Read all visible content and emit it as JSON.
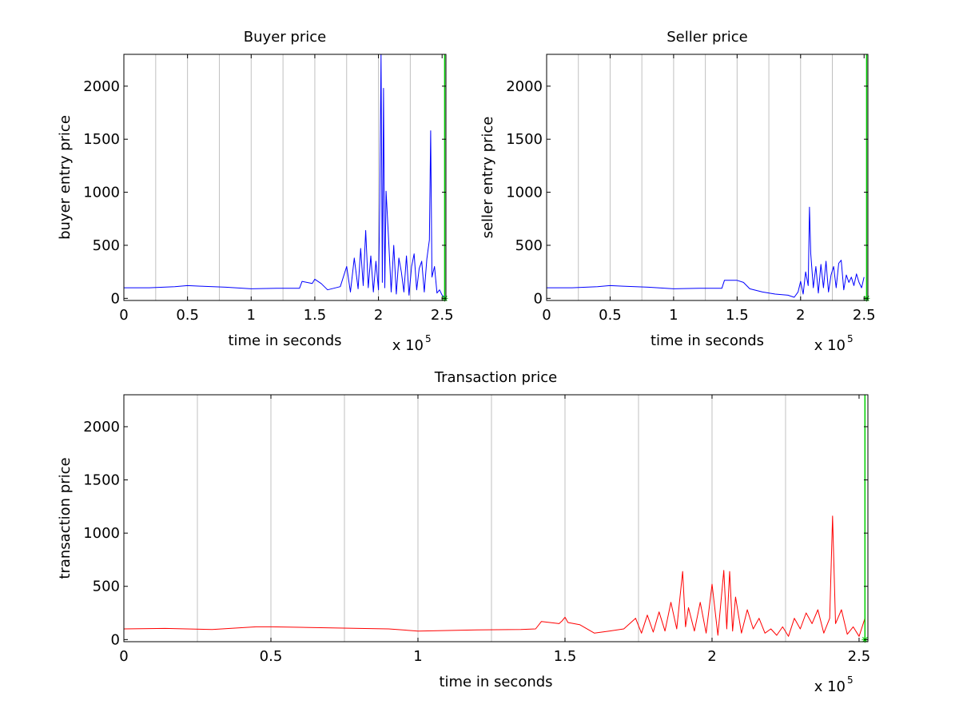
{
  "figure": {
    "background": "#ffffff"
  },
  "chart_data": [
    {
      "type": "line",
      "title": "Buyer price",
      "xlabel": "time in seconds",
      "ylabel": "buyer entry price",
      "x_multiplier_label": "x 10",
      "x_multiplier_exponent": "5",
      "xlim": [
        0,
        2.53
      ],
      "ylim": [
        -20,
        2300
      ],
      "xticks": [
        0,
        0.5,
        1,
        1.5,
        2,
        2.5
      ],
      "xtick_labels": [
        "0",
        "0.5",
        "1",
        "1.5",
        "2",
        "2.5"
      ],
      "yticks": [
        0,
        500,
        1000,
        1500,
        2000
      ],
      "ytick_labels": [
        "0",
        "500",
        "1000",
        "1500",
        "2000"
      ],
      "vgrid": [
        0.25,
        0.5,
        0.75,
        1.0,
        1.25,
        1.5,
        1.75,
        2.0,
        2.25
      ],
      "series": [
        {
          "color": "#0000ff",
          "x": [
            0,
            0.2,
            0.4,
            0.5,
            0.6,
            0.8,
            1.0,
            1.2,
            1.38,
            1.4,
            1.48,
            1.5,
            1.55,
            1.6,
            1.7,
            1.75,
            1.78,
            1.81,
            1.84,
            1.86,
            1.88,
            1.9,
            1.92,
            1.94,
            1.96,
            1.98,
            2.0,
            2.01,
            2.02,
            2.03,
            2.04,
            2.05,
            2.06,
            2.08,
            2.1,
            2.12,
            2.14,
            2.16,
            2.18,
            2.2,
            2.22,
            2.24,
            2.26,
            2.28,
            2.3,
            2.32,
            2.34,
            2.36,
            2.38,
            2.4,
            2.41,
            2.42,
            2.44,
            2.46,
            2.48,
            2.5,
            2.52
          ],
          "y": [
            100,
            100,
            110,
            120,
            115,
            105,
            90,
            95,
            95,
            160,
            140,
            180,
            140,
            80,
            110,
            300,
            60,
            380,
            90,
            470,
            120,
            640,
            100,
            400,
            60,
            350,
            80,
            900,
            2300,
            150,
            1980,
            100,
            1010,
            550,
            60,
            500,
            40,
            380,
            250,
            60,
            400,
            30,
            300,
            420,
            80,
            280,
            350,
            60,
            370,
            550,
            1580,
            200,
            300,
            50,
            80,
            30,
            10
          ]
        }
      ],
      "end_marker": {
        "x": 2.52,
        "y": 0,
        "color": "#00cc00"
      }
    },
    {
      "type": "line",
      "title": "Seller price",
      "xlabel": "time in seconds",
      "ylabel": "seller entry price",
      "x_multiplier_label": "x 10",
      "x_multiplier_exponent": "5",
      "xlim": [
        0,
        2.53
      ],
      "ylim": [
        -20,
        2300
      ],
      "xticks": [
        0,
        0.5,
        1,
        1.5,
        2,
        2.5
      ],
      "xtick_labels": [
        "0",
        "0.5",
        "1",
        "1.5",
        "2",
        "2.5"
      ],
      "yticks": [
        0,
        500,
        1000,
        1500,
        2000
      ],
      "ytick_labels": [
        "0",
        "500",
        "1000",
        "1500",
        "2000"
      ],
      "vgrid": [
        0.25,
        0.5,
        0.75,
        1.0,
        1.25,
        1.5,
        1.75,
        2.0,
        2.25
      ],
      "series": [
        {
          "color": "#0000ff",
          "x": [
            0,
            0.2,
            0.4,
            0.5,
            0.6,
            0.8,
            1.0,
            1.2,
            1.38,
            1.4,
            1.5,
            1.55,
            1.6,
            1.7,
            1.8,
            1.9,
            1.95,
            1.98,
            2.0,
            2.02,
            2.04,
            2.06,
            2.07,
            2.08,
            2.1,
            2.12,
            2.14,
            2.16,
            2.18,
            2.2,
            2.22,
            2.24,
            2.26,
            2.28,
            2.3,
            2.32,
            2.34,
            2.36,
            2.38,
            2.4,
            2.42,
            2.44,
            2.46,
            2.48,
            2.5
          ],
          "y": [
            100,
            100,
            110,
            120,
            115,
            105,
            90,
            95,
            95,
            170,
            170,
            150,
            90,
            60,
            40,
            30,
            10,
            60,
            160,
            40,
            250,
            120,
            860,
            420,
            100,
            300,
            50,
            320,
            100,
            350,
            60,
            220,
            300,
            100,
            330,
            360,
            80,
            220,
            150,
            200,
            120,
            230,
            150,
            100,
            200
          ]
        }
      ],
      "end_marker": {
        "x": 2.52,
        "y": 0,
        "color": "#00cc00"
      }
    },
    {
      "type": "line",
      "title": "Transaction price",
      "xlabel": "time in seconds",
      "ylabel": "transaction price",
      "x_multiplier_label": "x 10",
      "x_multiplier_exponent": "5",
      "xlim": [
        0,
        2.53
      ],
      "ylim": [
        -20,
        2300
      ],
      "xticks": [
        0,
        0.5,
        1,
        1.5,
        2,
        2.5
      ],
      "xtick_labels": [
        "0",
        "0.5",
        "1",
        "1.5",
        "2",
        "2.5"
      ],
      "yticks": [
        0,
        500,
        1000,
        1500,
        2000
      ],
      "ytick_labels": [
        "0",
        "500",
        "1000",
        "1500",
        "2000"
      ],
      "vgrid": [
        0.25,
        0.5,
        0.75,
        1.0,
        1.25,
        1.5,
        1.75,
        2.0,
        2.25
      ],
      "series": [
        {
          "color": "#ff0000",
          "x": [
            0,
            0.14,
            0.3,
            0.45,
            0.5,
            0.6,
            0.8,
            0.9,
            1.0,
            1.2,
            1.35,
            1.4,
            1.42,
            1.48,
            1.49,
            1.5,
            1.51,
            1.55,
            1.6,
            1.65,
            1.7,
            1.74,
            1.76,
            1.78,
            1.8,
            1.82,
            1.84,
            1.86,
            1.88,
            1.9,
            1.91,
            1.92,
            1.94,
            1.96,
            1.98,
            2.0,
            2.02,
            2.04,
            2.05,
            2.06,
            2.07,
            2.08,
            2.1,
            2.12,
            2.14,
            2.16,
            2.18,
            2.2,
            2.22,
            2.24,
            2.26,
            2.28,
            2.3,
            2.32,
            2.34,
            2.36,
            2.38,
            2.4,
            2.41,
            2.42,
            2.44,
            2.46,
            2.48,
            2.5,
            2.52
          ],
          "y": [
            100,
            105,
            95,
            120,
            120,
            115,
            105,
            100,
            80,
            90,
            95,
            100,
            170,
            150,
            175,
            210,
            160,
            140,
            60,
            80,
            100,
            200,
            60,
            230,
            70,
            260,
            80,
            350,
            100,
            640,
            120,
            300,
            80,
            350,
            60,
            520,
            40,
            650,
            100,
            640,
            80,
            400,
            60,
            280,
            100,
            200,
            60,
            100,
            40,
            120,
            30,
            200,
            100,
            250,
            150,
            280,
            60,
            200,
            1160,
            150,
            280,
            50,
            120,
            30,
            200
          ]
        }
      ],
      "end_marker": {
        "x": 2.52,
        "y": 0,
        "color": "#00cc00"
      }
    }
  ]
}
